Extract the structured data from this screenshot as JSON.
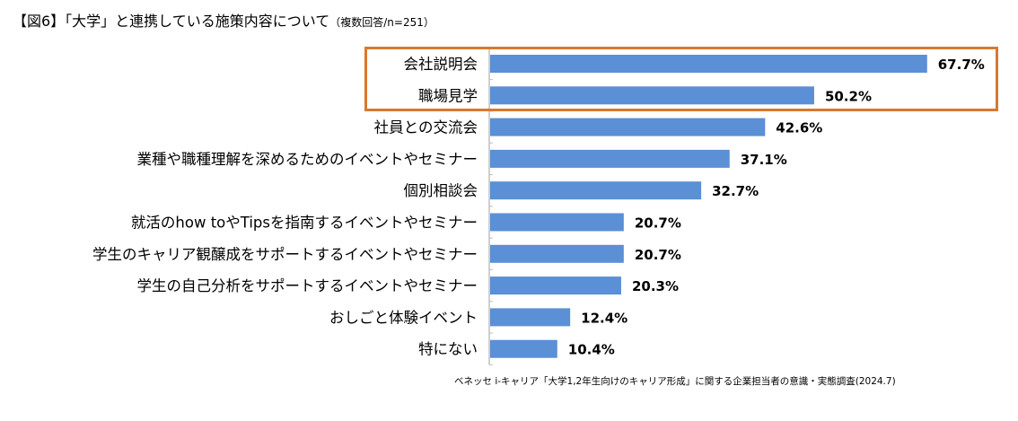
{
  "title": {
    "main": "【図6】「大学」と連携している施策内容について",
    "note": "（複数回答/n=251）"
  },
  "source": "ベネッセ i-キャリア「大学1,2年生向けのキャリア形成」に関する企業担当者の意識・実態調査(2024.7)",
  "colors": {
    "bar": "#5B8FD6",
    "highlight": "#D9782D",
    "axis": "#BFBFBF"
  },
  "chart_data": {
    "type": "bar",
    "orientation": "horizontal",
    "title": "【図6】「大学」と連携している施策内容について（複数回答/n=251）",
    "xlabel": "",
    "ylabel": "",
    "xlim": [
      0,
      70
    ],
    "unit": "%",
    "grid": false,
    "highlighted_categories": [
      "会社説明会",
      "職場見学"
    ],
    "categories": [
      "会社説明会",
      "職場見学",
      "社員との交流会",
      "業種や職種理解を深めるためのイベントやセミナー",
      "個別相談会",
      "就活のhow toやTipsを指南するイベントやセミナー",
      "学生のキャリア観醸成をサポートするイベントやセミナー",
      "学生の自己分析をサポートするイベントやセミナー",
      "おしごと体験イベント",
      "特にない"
    ],
    "values": [
      67.7,
      50.2,
      42.6,
      37.1,
      32.7,
      20.7,
      20.7,
      20.3,
      12.4,
      10.4
    ],
    "labels": [
      "67.7%",
      "50.2%",
      "42.6%",
      "37.1%",
      "32.7%",
      "20.7%",
      "20.7%",
      "20.3%",
      "12.4%",
      "10.4%"
    ]
  }
}
